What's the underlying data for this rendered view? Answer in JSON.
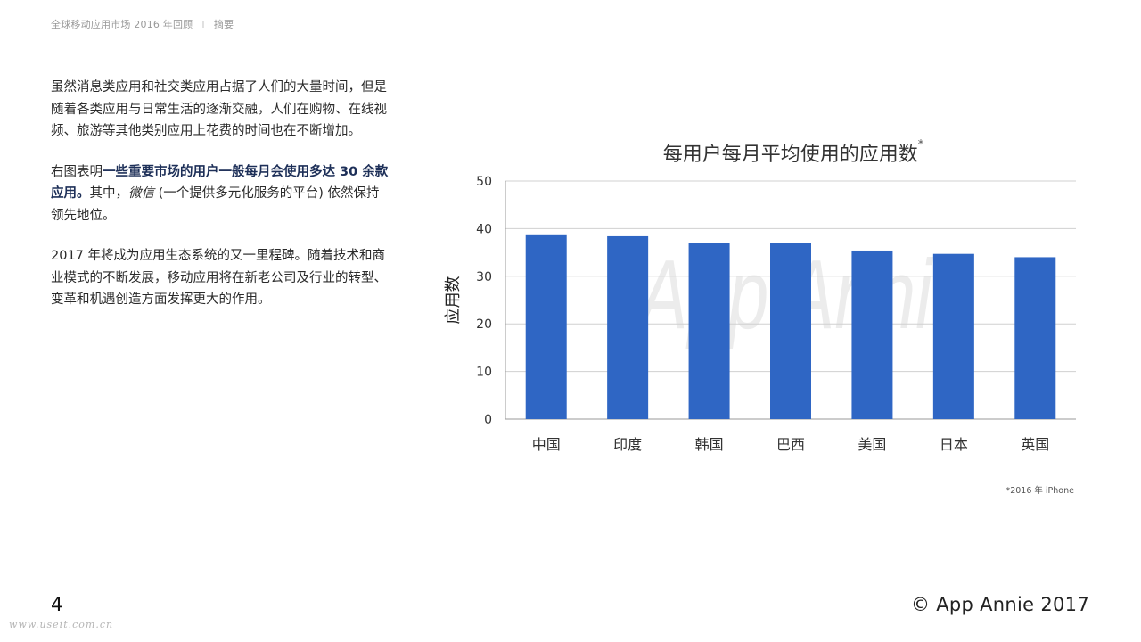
{
  "header": {
    "report_title": "全球移动应用市场 2016 年回顾",
    "separator": "I",
    "section": "摘要"
  },
  "body": {
    "p1": "虽然消息类应用和社交类应用占据了人们的大量时间，但是随着各类应用与日常生活的逐渐交融，人们在购物、在线视频、旅游等其他类别应用上花费的时间也在不断增加。",
    "p2_prefix": "右图表明",
    "p2_bold": "一些重要市场的用户一般每月会使用多达 30 余款应用。",
    "p2_mid": "其中，",
    "p2_italic": "微信",
    "p2_suffix": " (一个提供多元化服务的平台) 依然保持领先地位。",
    "p3": "2017 年将成为应用生态系统的又一里程碑。随着技术和商业模式的不断发展，移动应用将在新老公司及行业的转型、变革和机遇创造方面发挥更大的作用。"
  },
  "chart_data": {
    "type": "bar",
    "title": "每用户每月平均使用的应用数",
    "title_marker": "*",
    "xlabel": "",
    "ylabel": "应用数",
    "categories": [
      "中国",
      "印度",
      "韩国",
      "巴西",
      "美国",
      "日本",
      "英国"
    ],
    "values": [
      38.8,
      38.4,
      37.0,
      37.0,
      35.4,
      34.7,
      34.0
    ],
    "ylim": [
      0,
      50
    ],
    "yticks": [
      "0",
      "10",
      "20",
      "30",
      "40",
      "50"
    ],
    "grid": true,
    "bar_color": "#2f66c4",
    "watermark": "App Annie"
  },
  "footnote": "*2016 年 iPhone",
  "page_number": "4",
  "copyright": "© App Annie 2017",
  "site_watermark": "www.useit.com.cn"
}
